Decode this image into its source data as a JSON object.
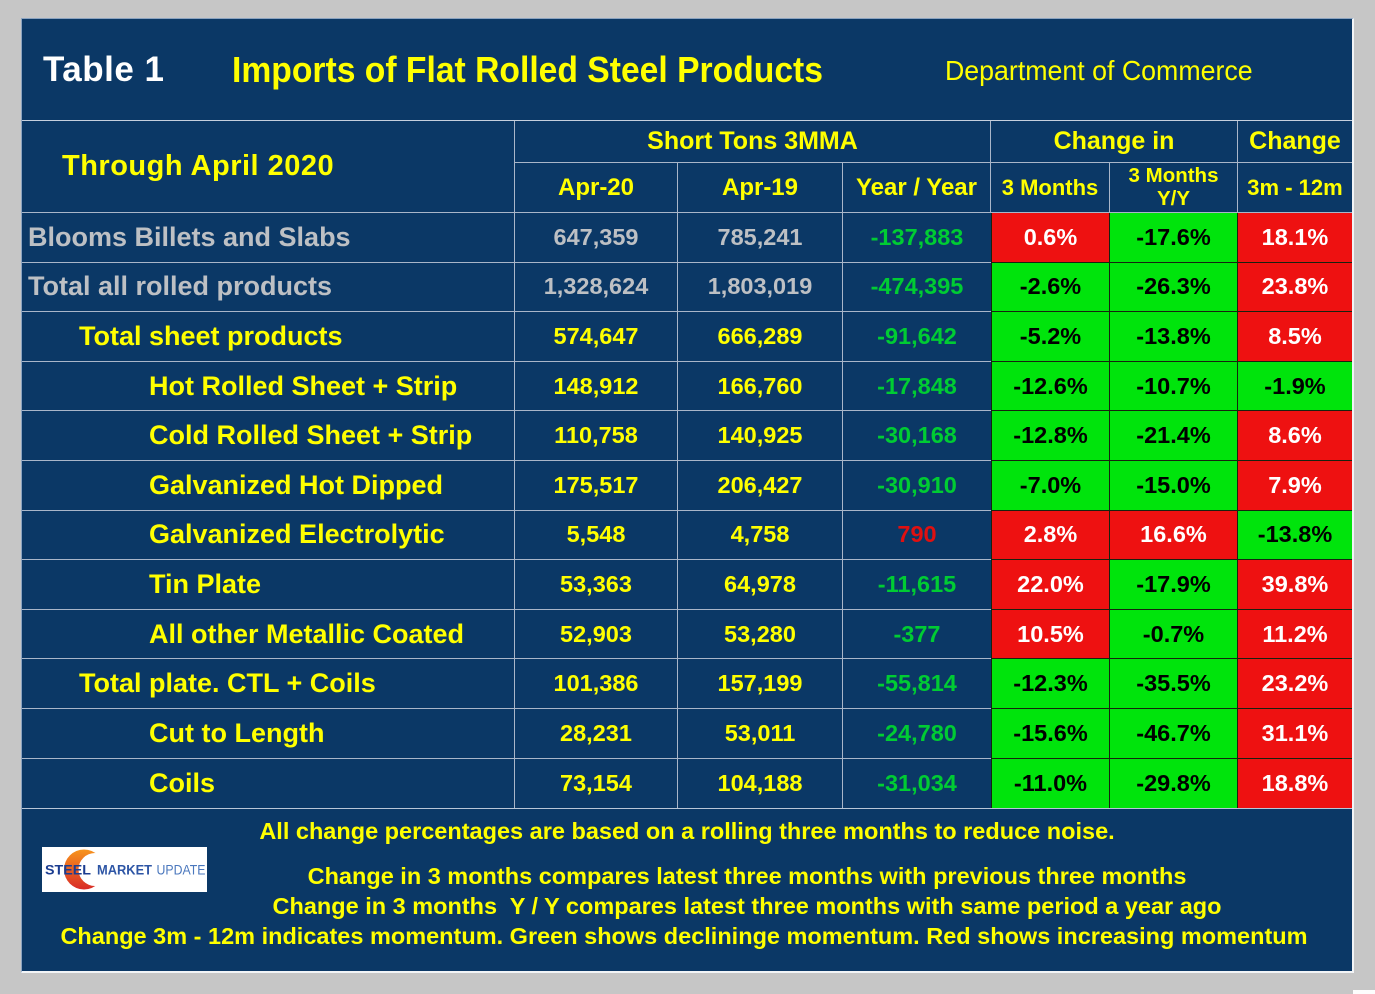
{
  "header": {
    "table_label": "Table 1",
    "title": "Imports of Flat Rolled Steel Products",
    "source": "Department of Commerce"
  },
  "table": {
    "period_label": "Through April 2020",
    "group_headers": [
      {
        "label": "Short Tons 3MMA"
      },
      {
        "label": "Change in"
      },
      {
        "label": "Change"
      }
    ],
    "sub_headers": {
      "apr20": "Apr-20",
      "apr19": "Apr-19",
      "yoy": "Year / Year",
      "m3": "3 Months",
      "m3yy_line1": "3 Months",
      "m3yy_line2": "Y/Y",
      "m3_12m": "3m - 12m"
    },
    "rows": [
      {
        "label": "Blooms Billets and Slabs",
        "indent": 0,
        "tone": "silver",
        "apr20": "647,359",
        "apr19": "785,241",
        "yoy": "-137,883",
        "yoy_tone": "green",
        "m3": "0.6%",
        "m3_bg": "red",
        "m3yy": "-17.6%",
        "m3yy_bg": "green",
        "m3_12m": "18.1%",
        "m3_12m_bg": "red"
      },
      {
        "label": "Total all rolled products",
        "indent": 0,
        "tone": "silver",
        "apr20": "1,328,624",
        "apr19": "1,803,019",
        "yoy": "-474,395",
        "yoy_tone": "green",
        "m3": "-2.6%",
        "m3_bg": "green",
        "m3yy": "-26.3%",
        "m3yy_bg": "green",
        "m3_12m": "23.8%",
        "m3_12m_bg": "red"
      },
      {
        "label": "Total sheet products",
        "indent": 1,
        "tone": "yellow",
        "apr20": "574,647",
        "apr19": "666,289",
        "yoy": "-91,642",
        "yoy_tone": "green",
        "m3": "-5.2%",
        "m3_bg": "green",
        "m3yy": "-13.8%",
        "m3yy_bg": "green",
        "m3_12m": "8.5%",
        "m3_12m_bg": "red"
      },
      {
        "label": "Hot Rolled Sheet + Strip",
        "indent": 2,
        "tone": "yellow",
        "apr20": "148,912",
        "apr19": "166,760",
        "yoy": "-17,848",
        "yoy_tone": "green",
        "m3": "-12.6%",
        "m3_bg": "green",
        "m3yy": "-10.7%",
        "m3yy_bg": "green",
        "m3_12m": "-1.9%",
        "m3_12m_bg": "green"
      },
      {
        "label": "Cold Rolled Sheet + Strip",
        "indent": 2,
        "tone": "yellow",
        "apr20": "110,758",
        "apr19": "140,925",
        "yoy": "-30,168",
        "yoy_tone": "green",
        "m3": "-12.8%",
        "m3_bg": "green",
        "m3yy": "-21.4%",
        "m3yy_bg": "green",
        "m3_12m": "8.6%",
        "m3_12m_bg": "red"
      },
      {
        "label": "Galvanized Hot Dipped",
        "indent": 2,
        "tone": "yellow",
        "apr20": "175,517",
        "apr19": "206,427",
        "yoy": "-30,910",
        "yoy_tone": "green",
        "m3": "-7.0%",
        "m3_bg": "green",
        "m3yy": "-15.0%",
        "m3yy_bg": "green",
        "m3_12m": "7.9%",
        "m3_12m_bg": "red"
      },
      {
        "label": "Galvanized Electrolytic",
        "indent": 2,
        "tone": "yellow",
        "apr20": "5,548",
        "apr19": "4,758",
        "yoy": "790",
        "yoy_tone": "red",
        "m3": "2.8%",
        "m3_bg": "red",
        "m3yy": "16.6%",
        "m3yy_bg": "red",
        "m3_12m": "-13.8%",
        "m3_12m_bg": "green"
      },
      {
        "label": "Tin Plate",
        "indent": 2,
        "tone": "yellow",
        "apr20": "53,363",
        "apr19": "64,978",
        "yoy": "-11,615",
        "yoy_tone": "green",
        "m3": "22.0%",
        "m3_bg": "red",
        "m3yy": "-17.9%",
        "m3yy_bg": "green",
        "m3_12m": "39.8%",
        "m3_12m_bg": "red"
      },
      {
        "label": "All other Metallic Coated",
        "indent": 2,
        "tone": "yellow",
        "apr20": "52,903",
        "apr19": "53,280",
        "yoy": "-377",
        "yoy_tone": "green",
        "m3": "10.5%",
        "m3_bg": "red",
        "m3yy": "-0.7%",
        "m3yy_bg": "green",
        "m3_12m": "11.2%",
        "m3_12m_bg": "red"
      },
      {
        "label": "Total plate. CTL + Coils",
        "indent": 1,
        "tone": "yellow",
        "apr20": "101,386",
        "apr19": "157,199",
        "yoy": "-55,814",
        "yoy_tone": "green",
        "m3": "-12.3%",
        "m3_bg": "green",
        "m3yy": "-35.5%",
        "m3yy_bg": "green",
        "m3_12m": "23.2%",
        "m3_12m_bg": "red"
      },
      {
        "label": "Cut to Length",
        "indent": 2,
        "tone": "yellow",
        "apr20": "28,231",
        "apr19": "53,011",
        "yoy": "-24,780",
        "yoy_tone": "green",
        "m3": "-15.6%",
        "m3_bg": "green",
        "m3yy": "-46.7%",
        "m3yy_bg": "green",
        "m3_12m": "31.1%",
        "m3_12m_bg": "red"
      },
      {
        "label": "Coils",
        "indent": 2,
        "tone": "yellow",
        "apr20": "73,154",
        "apr19": "104,188",
        "yoy": "-31,034",
        "yoy_tone": "green",
        "m3": "-11.0%",
        "m3_bg": "green",
        "m3yy": "-29.8%",
        "m3yy_bg": "green",
        "m3_12m": "18.8%",
        "m3_12m_bg": "red"
      }
    ]
  },
  "footer": {
    "lines": [
      "All change percentages are based on a rolling three months to reduce noise.",
      "Change in 3 months compares latest three months with previous three months",
      "Change in 3 months  Y / Y compares latest three months with same period a year ago",
      "Change 3m - 12m indicates momentum. Green shows declininge momentum. Red shows increasing momentum"
    ],
    "logo": {
      "word1": "STEEL",
      "word2": "MARKET",
      "word3": "UPDATE"
    }
  },
  "colors": {
    "page_background": "#c6c6c6",
    "panel_background": "#0b3866",
    "accent_yellow": "#ffff00",
    "label_silver": "#bdc0c4",
    "positive_red_bg": "#ee1111",
    "negative_green_bg": "#00e40c",
    "green_text": "#00cc33",
    "red_text": "#e01010"
  },
  "chart_data": {
    "type": "table",
    "title": "Imports of Flat Rolled Steel Products",
    "subtitle": "Table 1 — Through April 2020 — Department of Commerce",
    "columns": [
      "Product",
      "Apr-20 Short Tons 3MMA",
      "Apr-19 Short Tons 3MMA",
      "Year / Year",
      "Change in 3 Months",
      "Change in 3 Months Y/Y",
      "Change 3m - 12m"
    ],
    "rows": [
      [
        "Blooms Billets and Slabs",
        647359,
        785241,
        -137883,
        "0.6%",
        "-17.6%",
        "18.1%"
      ],
      [
        "Total all rolled products",
        1328624,
        1803019,
        -474395,
        "-2.6%",
        "-26.3%",
        "23.8%"
      ],
      [
        "Total sheet products",
        574647,
        666289,
        -91642,
        "-5.2%",
        "-13.8%",
        "8.5%"
      ],
      [
        "Hot Rolled Sheet + Strip",
        148912,
        166760,
        -17848,
        "-12.6%",
        "-10.7%",
        "-1.9%"
      ],
      [
        "Cold Rolled Sheet + Strip",
        110758,
        140925,
        -30168,
        "-12.8%",
        "-21.4%",
        "8.6%"
      ],
      [
        "Galvanized Hot Dipped",
        175517,
        206427,
        -30910,
        "-7.0%",
        "-15.0%",
        "7.9%"
      ],
      [
        "Galvanized Electrolytic",
        5548,
        4758,
        790,
        "2.8%",
        "16.6%",
        "-13.8%"
      ],
      [
        "Tin Plate",
        53363,
        64978,
        -11615,
        "22.0%",
        "-17.9%",
        "39.8%"
      ],
      [
        "All other Metallic Coated",
        52903,
        53280,
        -377,
        "10.5%",
        "-0.7%",
        "11.2%"
      ],
      [
        "Total plate. CTL + Coils",
        101386,
        157199,
        -55814,
        "-12.3%",
        "-35.5%",
        "23.2%"
      ],
      [
        "Cut to Length",
        28231,
        53011,
        -24780,
        "-15.6%",
        "-46.7%",
        "31.1%"
      ],
      [
        "Coils",
        73154,
        104188,
        -31034,
        "-11.0%",
        "-29.8%",
        "18.8%"
      ]
    ],
    "legend": "Green cell = declining momentum, Red cell = increasing momentum"
  }
}
